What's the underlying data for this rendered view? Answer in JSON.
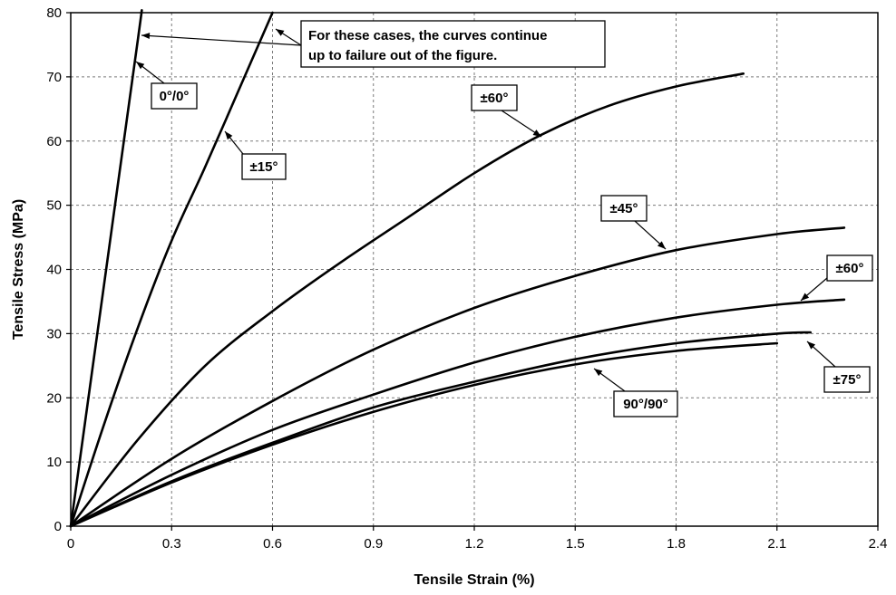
{
  "chart_data": {
    "type": "line",
    "xlabel": "Tensile Strain (%)",
    "ylabel": "Tensile Stress (MPa)",
    "xlim": [
      0,
      2.4
    ],
    "ylim": [
      0,
      80
    ],
    "x_ticks": [
      "0",
      "0.3",
      "0.6",
      "0.9",
      "1.2",
      "1.5",
      "1.8",
      "2.1",
      "2.4"
    ],
    "y_ticks": [
      "0",
      "10",
      "20",
      "30",
      "40",
      "50",
      "60",
      "70",
      "80"
    ],
    "grid": true,
    "series": [
      {
        "name": "0°/0°",
        "x": [
          0,
          0.1,
          0.2,
          0.21
        ],
        "y": [
          0,
          38,
          76,
          80
        ]
      },
      {
        "name": "±15°",
        "x": [
          0,
          0.1,
          0.2,
          0.3,
          0.4,
          0.5,
          0.6
        ],
        "y": [
          0,
          16,
          31,
          44.5,
          56,
          68,
          80
        ]
      },
      {
        "name": "±60°",
        "x": [
          0,
          0.2,
          0.4,
          0.6,
          0.8,
          1.0,
          1.2,
          1.4,
          1.6,
          1.8,
          2.0
        ],
        "y": [
          0,
          13.5,
          25,
          33.5,
          41,
          48,
          55,
          61,
          65.5,
          68.5,
          70.5
        ]
      },
      {
        "name": "±45°",
        "x": [
          0,
          0.3,
          0.6,
          0.9,
          1.2,
          1.5,
          1.8,
          2.1,
          2.3
        ],
        "y": [
          0,
          10.5,
          19.5,
          27.5,
          34,
          39,
          43,
          45.5,
          46.5
        ]
      },
      {
        "name": "±60°",
        "x": [
          0,
          0.3,
          0.6,
          0.9,
          1.2,
          1.5,
          1.8,
          2.1,
          2.3
        ],
        "y": [
          0,
          8,
          15,
          20.5,
          25.5,
          29.5,
          32.5,
          34.5,
          35.3
        ]
      },
      {
        "name": "±75°",
        "x": [
          0,
          0.3,
          0.6,
          0.9,
          1.2,
          1.5,
          1.8,
          2.1,
          2.2
        ],
        "y": [
          0,
          7,
          13,
          18.5,
          22.5,
          26,
          28.5,
          30,
          30.2
        ]
      },
      {
        "name": "90°/90°",
        "x": [
          0,
          0.3,
          0.6,
          0.9,
          1.2,
          1.5,
          1.8,
          2.1
        ],
        "y": [
          0,
          6.8,
          12.7,
          17.8,
          22,
          25.2,
          27.3,
          28.5
        ]
      }
    ],
    "annotations": [
      {
        "id": "note",
        "text_lines": [
          "For these cases, the curves continue",
          "up to failure out of the figure."
        ]
      },
      {
        "id": "lbl-0",
        "text": "0°/0°"
      },
      {
        "id": "lbl-15",
        "text": "±15°"
      },
      {
        "id": "lbl-60a",
        "text": "±60°"
      },
      {
        "id": "lbl-45",
        "text": "±45°"
      },
      {
        "id": "lbl-60b",
        "text": "±60°"
      },
      {
        "id": "lbl-75",
        "text": "±75°"
      },
      {
        "id": "lbl-90",
        "text": "90°/90°"
      }
    ]
  }
}
